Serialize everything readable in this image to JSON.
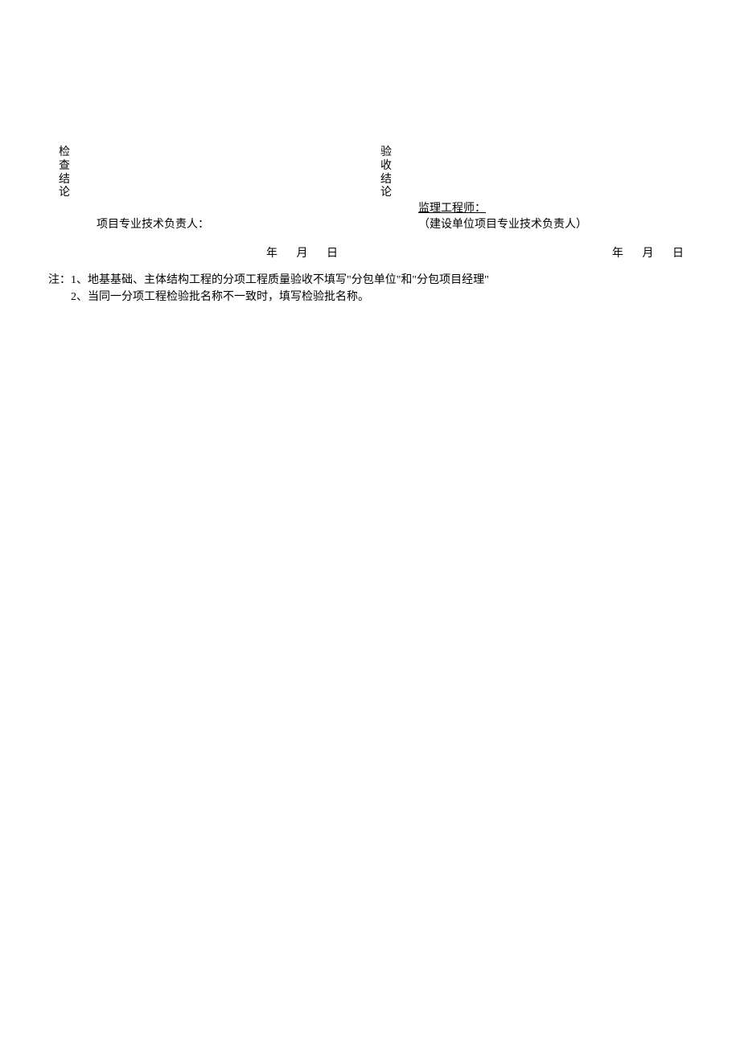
{
  "left_section": {
    "vertical_label_c1": "检",
    "vertical_label_c2": "查",
    "vertical_label_c3": "结",
    "vertical_label_c4": "论",
    "signature_label": "项目专业技术负责人：",
    "date_year": "年",
    "date_month": "月",
    "date_day": "日"
  },
  "right_section": {
    "vertical_label_c1": "验",
    "vertical_label_c2": "收",
    "vertical_label_c3": "结",
    "vertical_label_c4": "论",
    "supervisor_label": "监理工程师：",
    "construction_unit_label": "（建设单位项目专业技术负责人）",
    "date_year": "年",
    "date_month": "月",
    "date_day": "日"
  },
  "notes": {
    "prefix": "注：",
    "note1": "1、地基基础、主体结构工程的分项工程质量验收不填写\"分包单位\"和\"分包项目经理\"",
    "note2": "2、当同一分项工程检验批名称不一致时，填写检验批名称。"
  }
}
